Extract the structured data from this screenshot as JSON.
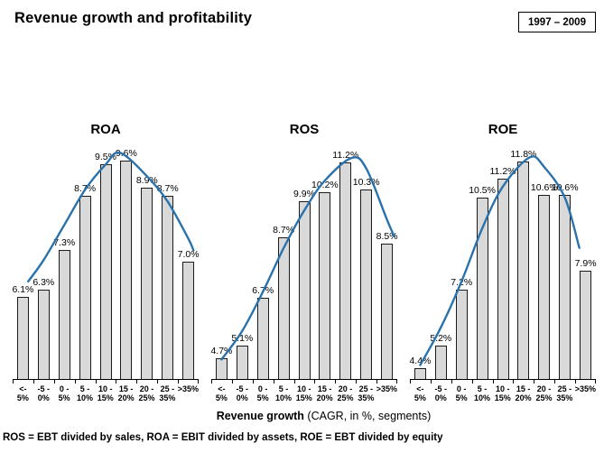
{
  "page": {
    "title": "Revenue growth and profitability",
    "period": "1997 – 2009",
    "xaxis_title_bold": "Revenue growth",
    "xaxis_title_note": " (CAGR, in %, segments)",
    "footnote": "ROS = EBT divided by sales, ROA = EBIT divided by assets, ROE = EBT divided by equity"
  },
  "colors": {
    "bar_fill": "#d9d9d9",
    "bar_border": "#1b1b1b",
    "curve": "#2a72ab",
    "text": "#000000"
  },
  "categories_two_line": [
    [
      "<-",
      "5%"
    ],
    [
      "-5 -",
      "0%"
    ],
    [
      "0 -",
      "5%"
    ],
    [
      "5 -",
      "10%"
    ],
    [
      "10 -",
      "15%"
    ],
    [
      "15 -",
      "20%"
    ],
    [
      "20 -",
      "25%"
    ],
    [
      "25 -",
      "35%"
    ],
    [
      ">35%",
      ""
    ]
  ],
  "chart_data": [
    {
      "type": "bar",
      "title": "ROA",
      "categories": [
        "< -5%",
        "-5 - 0%",
        "0 - 5%",
        "5 - 10%",
        "10 - 15%",
        "15 - 20%",
        "20 - 25%",
        "25 - 35%",
        ">35%"
      ],
      "values": [
        6.1,
        6.3,
        7.3,
        8.7,
        9.5,
        9.6,
        8.9,
        8.7,
        7.0
      ],
      "labels": [
        "6.1%",
        "6.3%",
        "7.3%",
        "8.7%",
        "9.5%",
        "9.6%",
        "8.9%",
        "8.7%",
        "7.0%"
      ],
      "ylim": [
        4,
        9.9
      ],
      "trend": [
        [
          0.25,
          6.5
        ],
        [
          1,
          7.05
        ],
        [
          2,
          7.95
        ],
        [
          3,
          8.85
        ],
        [
          4,
          9.5
        ],
        [
          4.7,
          9.8
        ],
        [
          6,
          9.2
        ],
        [
          7,
          8.55
        ],
        [
          8,
          7.6
        ],
        [
          8.25,
          7.3
        ]
      ]
    },
    {
      "type": "bar",
      "title": "ROS",
      "categories": [
        "< -5%",
        "-5 - 0%",
        "0 - 5%",
        "5 - 10%",
        "10 - 15%",
        "15 - 20%",
        "20 - 25%",
        "25 - 35%",
        ">35%"
      ],
      "values": [
        4.7,
        5.1,
        6.7,
        8.7,
        9.9,
        10.2,
        11.2,
        10.3,
        8.5
      ],
      "labels": [
        "4.7%",
        "5.1%",
        "6.7%",
        "8.7%",
        "9.9%",
        "10.2%",
        "11.2%",
        "10.3%",
        "8.5%"
      ],
      "ylim": [
        4,
        11.65
      ],
      "trend": [
        [
          0,
          4.65
        ],
        [
          1,
          5.6
        ],
        [
          2,
          6.9
        ],
        [
          3,
          8.35
        ],
        [
          4,
          9.6
        ],
        [
          5,
          10.6
        ],
        [
          6.3,
          11.35
        ],
        [
          7,
          11.0
        ],
        [
          8,
          9.3
        ],
        [
          8.35,
          8.75
        ]
      ]
    },
    {
      "type": "bar",
      "title": "ROE",
      "categories": [
        "< -5%",
        "-5 - 0%",
        "0 - 5%",
        "5 - 10%",
        "10 - 15%",
        "15 - 20%",
        "20 - 25%",
        "25 - 35%",
        ">35%"
      ],
      "values": [
        4.4,
        5.2,
        7.2,
        10.5,
        11.2,
        11.8,
        10.6,
        10.6,
        7.9
      ],
      "labels": [
        "4.4%",
        "5.2%",
        "7.2%",
        "10.5%",
        "11.2%",
        "11.8%",
        "10.6%",
        "10.6%",
        "7.9%"
      ],
      "ylim": [
        4,
        12.25
      ],
      "trend": [
        [
          0,
          4.5
        ],
        [
          1,
          5.85
        ],
        [
          2,
          7.5
        ],
        [
          3,
          9.4
        ],
        [
          4,
          10.9
        ],
        [
          5.3,
          11.95
        ],
        [
          6,
          11.6
        ],
        [
          7,
          10.5
        ],
        [
          7.7,
          8.7
        ]
      ]
    }
  ]
}
